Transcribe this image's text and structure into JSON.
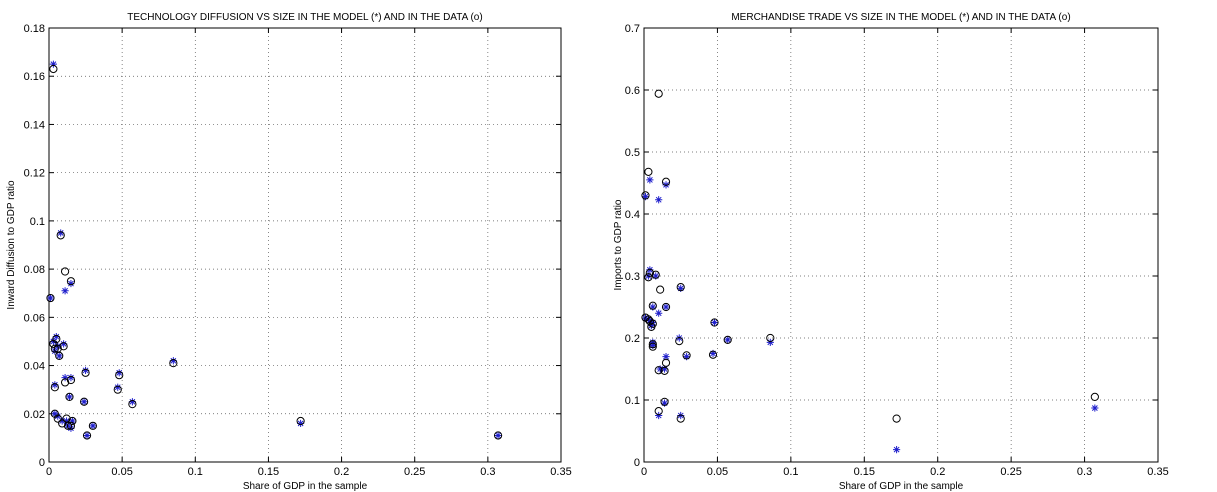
{
  "colors": {
    "model": "#1f1fcc",
    "data": "#000000",
    "grid": "#555555"
  },
  "chart_data": [
    {
      "type": "scatter",
      "title": "TECHNOLOGY DIFFUSION VS SIZE IN THE MODEL (*) AND IN THE DATA (o)",
      "xlabel": "Share of GDP in the sample",
      "ylabel": "Inward Diffusion to GDP ratio",
      "xlim": [
        0,
        0.35
      ],
      "ylim": [
        0,
        0.18
      ],
      "xticks": [
        0,
        0.05,
        0.1,
        0.15,
        0.2,
        0.25,
        0.3,
        0.35
      ],
      "yticks": [
        0,
        0.02,
        0.04,
        0.06,
        0.08,
        0.1,
        0.12,
        0.14,
        0.16,
        0.18
      ],
      "xtick_labels": [
        "0",
        "0.05",
        "0.1",
        "0.15",
        "0.2",
        "0.25",
        "0.3",
        "0.35"
      ],
      "ytick_labels": [
        "0",
        "0.02",
        "0.04",
        "0.06",
        "0.08",
        "0.1",
        "0.12",
        "0.14",
        "0.16",
        "0.18"
      ],
      "grid": true,
      "series": [
        {
          "marker": "*",
          "points": [
            [
              0.003,
              0.165
            ],
            [
              0.008,
              0.095
            ],
            [
              0.011,
              0.071
            ],
            [
              0.015,
              0.074
            ],
            [
              0.001,
              0.068
            ],
            [
              0.003,
              0.05
            ],
            [
              0.005,
              0.052
            ],
            [
              0.007,
              0.044
            ],
            [
              0.004,
              0.046
            ],
            [
              0.006,
              0.048
            ],
            [
              0.01,
              0.049
            ],
            [
              0.011,
              0.035
            ],
            [
              0.015,
              0.035
            ],
            [
              0.004,
              0.032
            ],
            [
              0.025,
              0.038
            ],
            [
              0.048,
              0.037
            ],
            [
              0.085,
              0.042
            ],
            [
              0.047,
              0.031
            ],
            [
              0.024,
              0.025
            ],
            [
              0.057,
              0.025
            ],
            [
              0.004,
              0.02
            ],
            [
              0.006,
              0.019
            ],
            [
              0.009,
              0.017
            ],
            [
              0.012,
              0.017
            ],
            [
              0.013,
              0.015
            ],
            [
              0.014,
              0.027
            ],
            [
              0.016,
              0.017
            ],
            [
              0.015,
              0.014
            ],
            [
              0.03,
              0.015
            ],
            [
              0.026,
              0.011
            ],
            [
              0.172,
              0.016
            ],
            [
              0.307,
              0.011
            ]
          ]
        },
        {
          "marker": "o",
          "points": [
            [
              0.003,
              0.163
            ],
            [
              0.008,
              0.094
            ],
            [
              0.011,
              0.079
            ],
            [
              0.015,
              0.075
            ],
            [
              0.001,
              0.068
            ],
            [
              0.003,
              0.049
            ],
            [
              0.005,
              0.051
            ],
            [
              0.007,
              0.044
            ],
            [
              0.004,
              0.047
            ],
            [
              0.006,
              0.047
            ],
            [
              0.01,
              0.048
            ],
            [
              0.011,
              0.033
            ],
            [
              0.015,
              0.034
            ],
            [
              0.004,
              0.031
            ],
            [
              0.025,
              0.037
            ],
            [
              0.048,
              0.036
            ],
            [
              0.085,
              0.041
            ],
            [
              0.047,
              0.03
            ],
            [
              0.024,
              0.025
            ],
            [
              0.057,
              0.024
            ],
            [
              0.004,
              0.02
            ],
            [
              0.006,
              0.018
            ],
            [
              0.009,
              0.016
            ],
            [
              0.012,
              0.018
            ],
            [
              0.013,
              0.015
            ],
            [
              0.014,
              0.027
            ],
            [
              0.016,
              0.017
            ],
            [
              0.015,
              0.015
            ],
            [
              0.03,
              0.015
            ],
            [
              0.026,
              0.011
            ],
            [
              0.172,
              0.017
            ],
            [
              0.307,
              0.011
            ]
          ]
        }
      ]
    },
    {
      "type": "scatter",
      "title": "MERCHANDISE TRADE VS SIZE IN THE MODEL (*) AND IN THE DATA (o)",
      "xlabel": "Share of GDP in the sample",
      "ylabel": "Imports to GDP ratio",
      "xlim": [
        0,
        0.35
      ],
      "ylim": [
        0,
        0.7
      ],
      "xticks": [
        0,
        0.05,
        0.1,
        0.15,
        0.2,
        0.25,
        0.3,
        0.35
      ],
      "yticks": [
        0,
        0.1,
        0.2,
        0.3,
        0.4,
        0.5,
        0.6,
        0.7
      ],
      "xtick_labels": [
        "0",
        "0.05",
        "0.1",
        "0.15",
        "0.2",
        "0.25",
        "0.3",
        "0.35"
      ],
      "ytick_labels": [
        "0",
        "0.1",
        "0.2",
        "0.3",
        "0.4",
        "0.5",
        "0.6",
        "0.7"
      ],
      "grid": true,
      "series": [
        {
          "marker": "*",
          "points": [
            [
              0.001,
              0.428
            ],
            [
              0.004,
              0.455
            ],
            [
              0.01,
              0.423
            ],
            [
              0.015,
              0.447
            ],
            [
              0.004,
              0.31
            ],
            [
              0.008,
              0.3
            ],
            [
              0.003,
              0.3
            ],
            [
              0.006,
              0.25
            ],
            [
              0.01,
              0.24
            ],
            [
              0.015,
              0.25
            ],
            [
              0.025,
              0.28
            ],
            [
              0.001,
              0.232
            ],
            [
              0.004,
              0.228
            ],
            [
              0.006,
              0.225
            ],
            [
              0.003,
              0.23
            ],
            [
              0.005,
              0.22
            ],
            [
              0.006,
              0.193
            ],
            [
              0.006,
              0.188
            ],
            [
              0.015,
              0.17
            ],
            [
              0.024,
              0.2
            ],
            [
              0.029,
              0.17
            ],
            [
              0.047,
              0.175
            ],
            [
              0.048,
              0.225
            ],
            [
              0.057,
              0.197
            ],
            [
              0.086,
              0.193
            ],
            [
              0.011,
              0.15
            ],
            [
              0.014,
              0.15
            ],
            [
              0.014,
              0.095
            ],
            [
              0.01,
              0.075
            ],
            [
              0.025,
              0.075
            ],
            [
              0.172,
              0.02
            ],
            [
              0.307,
              0.087
            ]
          ]
        },
        {
          "marker": "o",
          "points": [
            [
              0.001,
              0.43
            ],
            [
              0.003,
              0.468
            ],
            [
              0.01,
              0.594
            ],
            [
              0.015,
              0.452
            ],
            [
              0.004,
              0.305
            ],
            [
              0.008,
              0.302
            ],
            [
              0.003,
              0.298
            ],
            [
              0.006,
              0.252
            ],
            [
              0.011,
              0.278
            ],
            [
              0.015,
              0.25
            ],
            [
              0.025,
              0.282
            ],
            [
              0.001,
              0.233
            ],
            [
              0.004,
              0.227
            ],
            [
              0.006,
              0.223
            ],
            [
              0.003,
              0.23
            ],
            [
              0.005,
              0.218
            ],
            [
              0.006,
              0.19
            ],
            [
              0.006,
              0.186
            ],
            [
              0.015,
              0.16
            ],
            [
              0.024,
              0.195
            ],
            [
              0.029,
              0.172
            ],
            [
              0.047,
              0.173
            ],
            [
              0.048,
              0.225
            ],
            [
              0.057,
              0.197
            ],
            [
              0.086,
              0.2
            ],
            [
              0.01,
              0.148
            ],
            [
              0.014,
              0.147
            ],
            [
              0.014,
              0.097
            ],
            [
              0.01,
              0.082
            ],
            [
              0.025,
              0.07
            ],
            [
              0.172,
              0.07
            ],
            [
              0.307,
              0.105
            ]
          ]
        }
      ]
    }
  ]
}
